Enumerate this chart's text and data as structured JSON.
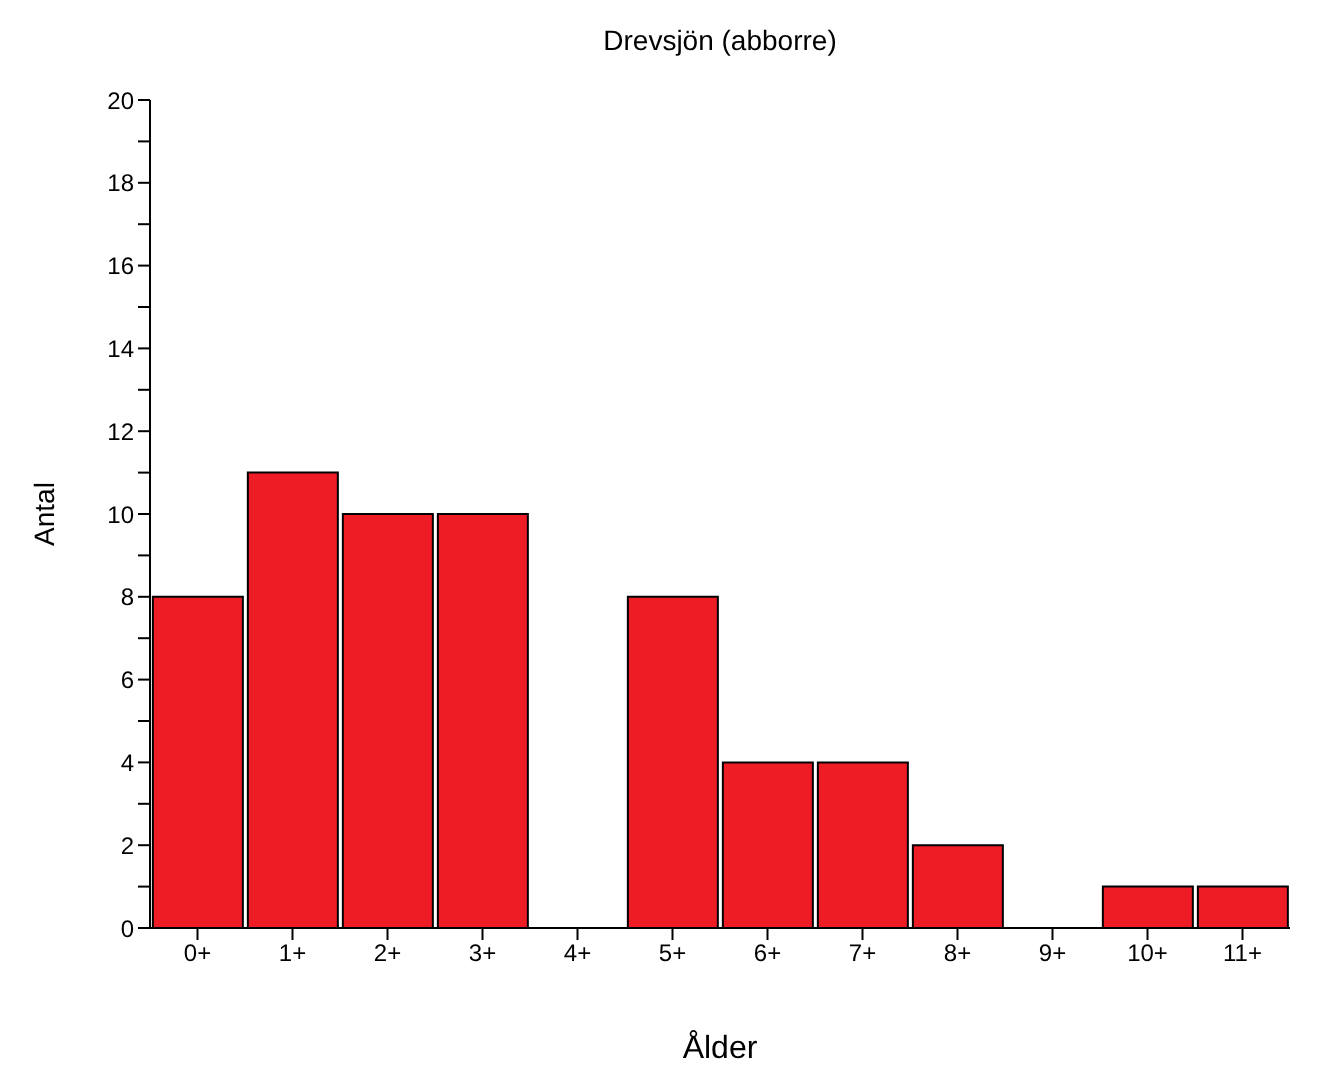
{
  "chart_data": {
    "type": "bar",
    "title": "Drevsjön (abborre)",
    "xlabel": "Ålder",
    "ylabel": "Antal",
    "categories": [
      "0+",
      "1+",
      "2+",
      "3+",
      "4+",
      "5+",
      "6+",
      "7+",
      "8+",
      "9+",
      "10+",
      "11+"
    ],
    "values": [
      8,
      11,
      10,
      10,
      0,
      8,
      4,
      4,
      2,
      0,
      1,
      1
    ],
    "color": "#ee1c25",
    "ylim": [
      0,
      20
    ],
    "yticks": [
      0,
      {
        "value": 1,
        "label": null
      },
      2,
      {
        "value": 3,
        "label": null
      },
      4,
      {
        "value": 5,
        "label": null
      },
      6,
      {
        "value": 7,
        "label": null
      },
      8,
      {
        "value": 9,
        "label": null
      },
      10,
      {
        "value": 11,
        "label": null
      },
      12,
      {
        "value": 13,
        "label": null
      },
      14,
      {
        "value": 15,
        "label": null
      },
      16,
      {
        "value": 17,
        "label": null
      },
      18,
      {
        "value": 19,
        "label": null
      },
      20
    ]
  }
}
